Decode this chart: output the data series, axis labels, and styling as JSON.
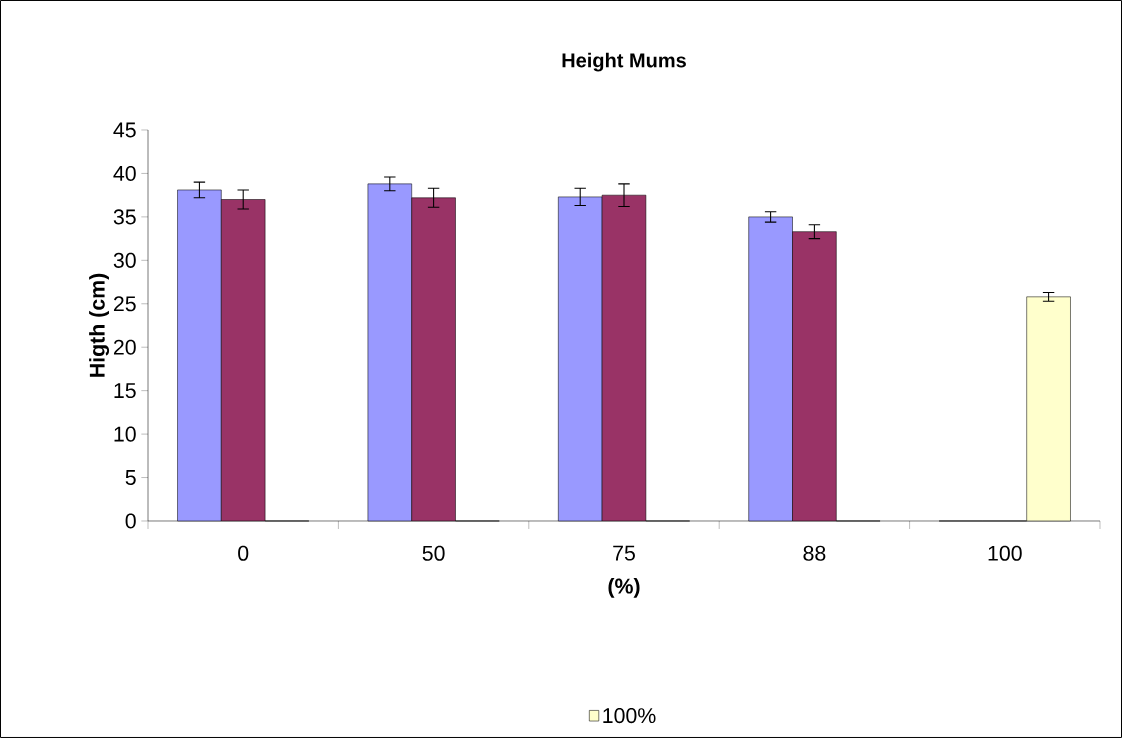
{
  "chart_data": {
    "type": "bar",
    "title": "Height Mums",
    "xlabel": "(%)",
    "ylabel": "Higth (cm)",
    "categories": [
      "0",
      "50",
      "75",
      "88",
      "100"
    ],
    "series": [
      {
        "color": "#9999ff",
        "values": [
          38.1,
          38.8,
          37.3,
          35.0,
          0
        ],
        "errors": [
          0.9,
          0.8,
          1.0,
          0.6,
          null
        ]
      },
      {
        "color": "#993366",
        "values": [
          37.0,
          37.2,
          37.5,
          33.3,
          0
        ],
        "errors": [
          1.1,
          1.1,
          1.3,
          0.8,
          null
        ]
      },
      {
        "name": "100%",
        "color": "#ffffcc",
        "values": [
          0,
          0,
          0,
          0,
          25.8
        ],
        "errors": [
          null,
          null,
          null,
          null,
          0.5
        ]
      }
    ],
    "ylim": [
      0,
      45
    ],
    "yticks": [
      0,
      5,
      10,
      15,
      20,
      25,
      30,
      35,
      40,
      45
    ],
    "grid": false,
    "legend": "bottom"
  }
}
